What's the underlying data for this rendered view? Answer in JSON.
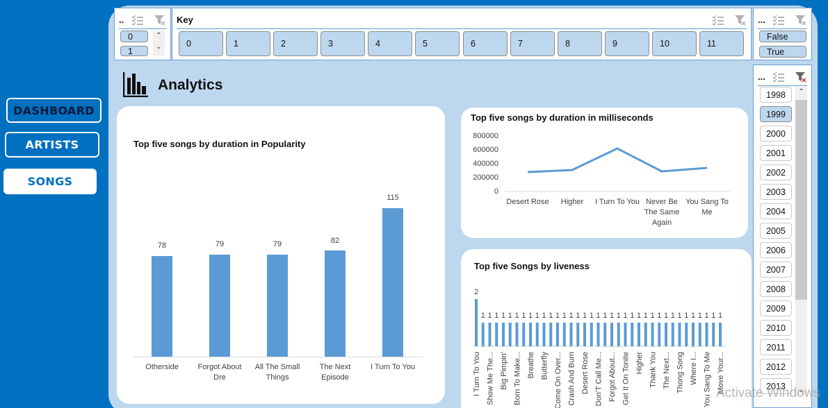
{
  "nav": {
    "dashboard": "DASHBOARD",
    "artists": "ARTISTS",
    "songs": "SONGS"
  },
  "slicers": {
    "mode": {
      "title": "..",
      "items": [
        "0",
        "1"
      ]
    },
    "key": {
      "title": "Key",
      "items": [
        "0",
        "1",
        "2",
        "3",
        "4",
        "5",
        "6",
        "7",
        "8",
        "9",
        "10",
        "11"
      ]
    },
    "explicit": {
      "title": "...",
      "items": [
        "False",
        "True"
      ]
    },
    "year": {
      "title": "...",
      "items": [
        "1998",
        "1999",
        "2000",
        "2001",
        "2002",
        "2003",
        "2004",
        "2005",
        "2006",
        "2007",
        "2008",
        "2009",
        "2010",
        "2011",
        "2012",
        "2013"
      ],
      "selected": "1999"
    }
  },
  "header": {
    "title": "Analytics"
  },
  "colors": {
    "accent": "#0070c0",
    "panel": "#bdd7ee",
    "series": "#5b9bd5"
  },
  "chart_data": [
    {
      "type": "bar",
      "title": "Top five songs by duration in Popularity",
      "categories": [
        "Otherside",
        "Forgot About Dre",
        "All The Small Things",
        "The Next Episode",
        "I Turn To You"
      ],
      "category_lines": [
        [
          "Otherside"
        ],
        [
          "Forgot About",
          "Dre"
        ],
        [
          "All The Small",
          "Things"
        ],
        [
          "The Next",
          "Episode"
        ],
        [
          "I Turn To You"
        ]
      ],
      "values": [
        78,
        79,
        79,
        82,
        115
      ],
      "data_labels": [
        "78",
        "79",
        "79",
        "82",
        "115"
      ],
      "xlabel": "",
      "ylabel": "",
      "grid": false,
      "legend": "none"
    },
    {
      "type": "line",
      "title": "Top five songs by duration in milliseconds",
      "categories": [
        "Desert Rose",
        "Higher",
        "I Turn To You",
        "Never Be The Same Again",
        "You Sang To Me"
      ],
      "category_lines": [
        [
          "Desert Rose"
        ],
        [
          "Higher"
        ],
        [
          "I Turn To You"
        ],
        [
          "Never Be",
          "The Same",
          "Again"
        ],
        [
          "You Sang To",
          "Me"
        ]
      ],
      "values": [
        286000,
        316000,
        625000,
        295000,
        345000
      ],
      "yticks": [
        "800000",
        "600000",
        "400000",
        "200000",
        "0"
      ],
      "ylim": [
        0,
        800000
      ],
      "grid": false,
      "legend": "none"
    },
    {
      "type": "bar",
      "title": "Top five Songs by liveness",
      "categories": [
        "I Turn To You",
        "",
        "Show Me The...",
        "",
        "Big Pimpin'",
        "",
        "Born To Make...",
        "",
        "Breathe",
        "",
        "Butterfly",
        "",
        "Come On Over...",
        "",
        "Crash And Burn",
        "",
        "Desert Rose",
        "",
        "Don'T Call Me...",
        "",
        "Forgot About...",
        "",
        "Get It On Tonite",
        "",
        "Higher",
        "",
        "Thank You",
        "",
        "The Next...",
        "",
        "Thong Song",
        "",
        "Where I...",
        "",
        "You Sang To Me",
        "",
        "Move Your..."
      ],
      "visible_tick_labels": [
        "I Turn To You",
        "Show Me The...",
        "Big Pimpin'",
        "Born To Make...",
        "Breathe",
        "Butterfly",
        "Come On Over...",
        "Crash And Burn",
        "Desert Rose",
        "Don'T Call Me...",
        "Forgot About...",
        "Get It On Tonite",
        "Higher",
        "Thank You",
        "The Next...",
        "Thong Song",
        "Where I...",
        "You Sang To Me",
        "Move Your..."
      ],
      "values": [
        2,
        1,
        1,
        1,
        1,
        1,
        1,
        1,
        1,
        1,
        1,
        1,
        1,
        1,
        1,
        1,
        1,
        1,
        1,
        1,
        1,
        1,
        1,
        1,
        1,
        1,
        1,
        1,
        1,
        1,
        1,
        1,
        1,
        1,
        1,
        1,
        1
      ],
      "grid": false,
      "legend": "none"
    }
  ],
  "watermark": "Activate Windows"
}
